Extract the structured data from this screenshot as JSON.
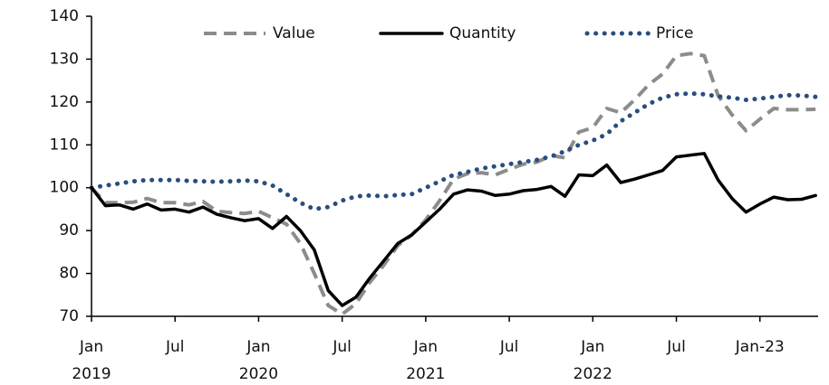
{
  "chart_data": {
    "type": "line",
    "categories": [
      "Jan",
      null,
      null,
      null,
      null,
      null,
      "Jul",
      null,
      null,
      null,
      null,
      null,
      "Jan",
      null,
      null,
      null,
      null,
      null,
      "Jul",
      null,
      null,
      null,
      null,
      null,
      "Jan",
      null,
      null,
      null,
      null,
      null,
      "Jul",
      null,
      null,
      null,
      null,
      null,
      "Jan",
      null,
      null,
      null,
      null,
      null,
      "Jul",
      null,
      null,
      null,
      null,
      null,
      "Jan-23",
      null,
      null,
      null,
      null
    ],
    "year_labels": [
      "2019",
      "2020",
      "2021",
      "2022"
    ],
    "series": [
      {
        "name": "Value",
        "color": "#8c8c8c",
        "style": "dashed",
        "values": [
          100,
          96.5,
          96.5,
          96.6,
          97.5,
          96.5,
          96.5,
          96,
          96.8,
          94.5,
          94.2,
          94,
          94.5,
          93,
          91.5,
          87,
          80,
          72.5,
          70.5,
          73,
          78,
          82,
          86.5,
          89,
          92.5,
          97,
          102,
          103.3,
          103.5,
          103,
          104.3,
          105.5,
          106,
          107.5,
          107,
          113,
          114,
          118.5,
          117.5,
          120.5,
          124,
          126.5,
          130.8,
          131.3,
          130.8,
          121.5,
          117,
          113.3,
          116,
          118.5,
          118.2,
          118.2,
          118.3
        ]
      },
      {
        "name": "Quantity",
        "color": "#000000",
        "style": "solid",
        "values": [
          100,
          95.8,
          96,
          95,
          96.2,
          94.8,
          95,
          94.3,
          95.5,
          93.8,
          93,
          92.3,
          92.8,
          90.5,
          93.3,
          90,
          85.5,
          76,
          72.5,
          74.5,
          79,
          83,
          87,
          89,
          92,
          95,
          98.5,
          99.5,
          99.2,
          98.2,
          98.5,
          99.3,
          99.6,
          100.3,
          98,
          103,
          102.8,
          105.3,
          101.2,
          102,
          103,
          104,
          107.2,
          107.6,
          108,
          101.8,
          97.5,
          94.3,
          96.2,
          97.8,
          97.2,
          97.3,
          98.2
        ]
      },
      {
        "name": "Price",
        "color": "#2a4d80",
        "style": "dotted",
        "values": [
          100,
          100.5,
          101,
          101.5,
          101.8,
          101.8,
          101.8,
          101.6,
          101.5,
          101.4,
          101.5,
          101.7,
          101.5,
          100.5,
          98.5,
          96.5,
          95,
          95.5,
          97,
          98,
          98.2,
          98,
          98.3,
          98.5,
          100,
          101.5,
          103,
          103.7,
          104.5,
          105,
          105.5,
          106,
          106.5,
          107.3,
          108.5,
          110,
          111,
          112.5,
          115.5,
          117.5,
          119.5,
          121,
          121.8,
          122,
          121.8,
          121.3,
          121,
          120.5,
          120.8,
          121.2,
          121.6,
          121.5,
          121.2
        ]
      }
    ],
    "ylim": [
      70,
      140
    ],
    "yticks": [
      70,
      80,
      90,
      100,
      110,
      120,
      130,
      140
    ],
    "grid": false,
    "legend": "top"
  }
}
